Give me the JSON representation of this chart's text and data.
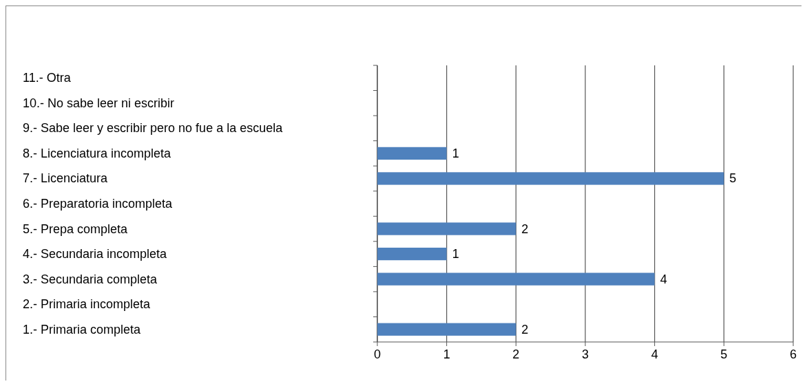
{
  "chart_data": {
    "type": "bar",
    "orientation": "horizontal",
    "categories": [
      "11.- Otra",
      "10.- No sabe leer ni escribir",
      "9.- Sabe leer y escribir pero no fue a la escuela",
      "8.- Licenciatura incompleta",
      "7.- Licenciatura",
      "6.- Preparatoria incompleta",
      "5.- Prepa completa",
      "4.- Secundaria incompleta",
      "3.- Secundaria completa",
      "2.- Primaria incompleta",
      "1.- Primaria completa"
    ],
    "values": [
      null,
      null,
      null,
      1,
      5,
      null,
      2,
      1,
      4,
      null,
      2
    ],
    "color": "#4f81bd",
    "xlim": [
      0,
      6
    ],
    "xticks": [
      0,
      1,
      2,
      3,
      4,
      5,
      6
    ],
    "grid": "x",
    "data_labels": true
  }
}
